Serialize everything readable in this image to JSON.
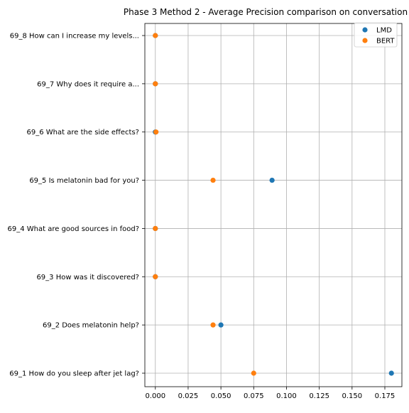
{
  "chart_data": {
    "type": "scatter",
    "title": "Phase 3 Method 2 - Average Precision comparison on conversation",
    "xlabel": "",
    "ylabel": "",
    "xlim": [
      -0.008,
      0.188
    ],
    "x_ticks": [
      "0.000",
      "0.025",
      "0.050",
      "0.075",
      "0.100",
      "0.125",
      "0.150",
      "0.175"
    ],
    "x_tick_values": [
      0,
      0.025,
      0.05,
      0.075,
      0.1,
      0.125,
      0.15,
      0.175
    ],
    "categories": [
      "69_1 How do you sleep after jet lag?",
      "69_2 Does melatonin help?",
      "69_3 How was it discovered?",
      "69_4 What are good sources in food?",
      "69_5 Is melatonin bad for you?",
      "69_6 What are the side effects?",
      "69_7 Why does it require a...",
      "69_8 How can I increase my levels..."
    ],
    "series": [
      {
        "name": "LMD",
        "color": "#1f77b4",
        "values": [
          0.18,
          0.05,
          0.0,
          0.0,
          0.089,
          0.0,
          0.0,
          0.0
        ]
      },
      {
        "name": "BERT",
        "color": "#ff7f0e",
        "values": [
          0.075,
          0.044,
          0.0,
          0.0,
          0.044,
          0.0005,
          0.0,
          0.0
        ]
      }
    ],
    "grid": true,
    "legend_position": "top-right"
  }
}
